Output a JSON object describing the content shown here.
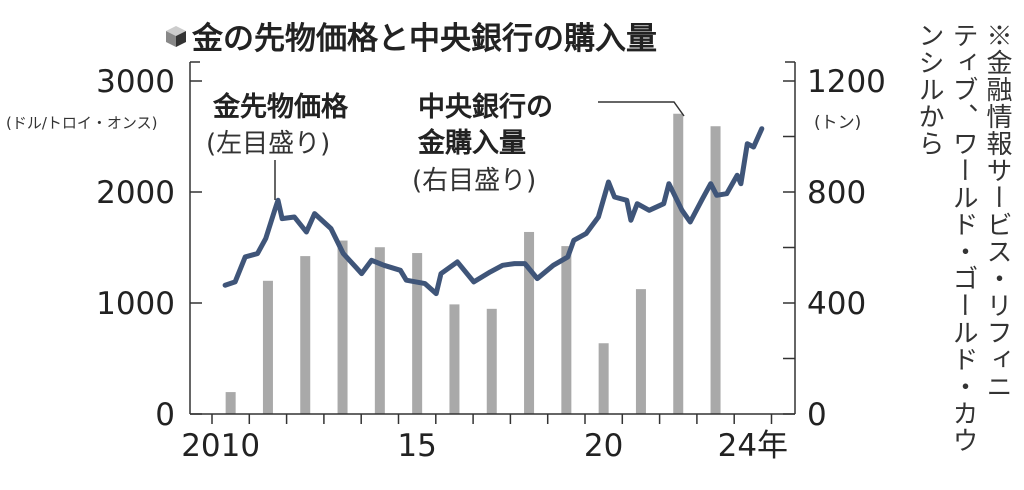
{
  "title": "金の先物価格と中央銀行の購入量",
  "note": [
    "※金融情報サービス・リフィニ",
    "ティブ、ワールド・ゴールド・カウ",
    "ンシルから"
  ],
  "colors": {
    "line": "#3f5579",
    "bar": "#a9a9a9",
    "axis": "#333333"
  },
  "chart_data": {
    "type": "bar+line",
    "title": "金の先物価格と中央銀行の購入量",
    "x_ticks": [
      {
        "year": 2010,
        "label": "2010"
      },
      {
        "year": 2015,
        "label": "15"
      },
      {
        "year": 2020,
        "label": "20"
      },
      {
        "year": 2024,
        "label": "24年"
      }
    ],
    "xlim": [
      2010,
      2025
    ],
    "left_axis": {
      "unit": "(ドル/トロイ・オンス)",
      "range": [
        0,
        3000
      ],
      "ticks": [
        "0",
        "1000",
        "2000",
        "3000"
      ]
    },
    "right_axis": {
      "unit": "(トン)",
      "range": [
        0,
        1200
      ],
      "ticks": [
        "0",
        "400",
        "800",
        "1200"
      ]
    },
    "series": [
      {
        "name": "金先物価格",
        "sublabel": "(左目盛り)",
        "type": "line",
        "axis": "left",
        "points": [
          [
            2010.35,
            1160
          ],
          [
            2010.62,
            1190
          ],
          [
            2010.89,
            1415
          ],
          [
            2011.22,
            1445
          ],
          [
            2011.44,
            1580
          ],
          [
            2011.68,
            1835
          ],
          [
            2011.77,
            1925
          ],
          [
            2011.88,
            1760
          ],
          [
            2012.21,
            1775
          ],
          [
            2012.53,
            1640
          ],
          [
            2012.75,
            1805
          ],
          [
            2013.19,
            1670
          ],
          [
            2013.52,
            1445
          ],
          [
            2013.85,
            1325
          ],
          [
            2014.01,
            1265
          ],
          [
            2014.28,
            1385
          ],
          [
            2014.61,
            1340
          ],
          [
            2015.05,
            1295
          ],
          [
            2015.21,
            1205
          ],
          [
            2015.71,
            1175
          ],
          [
            2016.01,
            1085
          ],
          [
            2016.14,
            1265
          ],
          [
            2016.58,
            1370
          ],
          [
            2017.02,
            1190
          ],
          [
            2017.46,
            1280
          ],
          [
            2017.79,
            1340
          ],
          [
            2018.11,
            1355
          ],
          [
            2018.39,
            1355
          ],
          [
            2018.72,
            1220
          ],
          [
            2019.15,
            1340
          ],
          [
            2019.54,
            1415
          ],
          [
            2019.7,
            1565
          ],
          [
            2020.03,
            1625
          ],
          [
            2020.36,
            1775
          ],
          [
            2020.63,
            2090
          ],
          [
            2020.79,
            1955
          ],
          [
            2021.12,
            1925
          ],
          [
            2021.23,
            1745
          ],
          [
            2021.4,
            1895
          ],
          [
            2021.72,
            1835
          ],
          [
            2022.11,
            1895
          ],
          [
            2022.25,
            2075
          ],
          [
            2022.6,
            1835
          ],
          [
            2022.82,
            1730
          ],
          [
            2023.15,
            1940
          ],
          [
            2023.37,
            2075
          ],
          [
            2023.53,
            1970
          ],
          [
            2023.8,
            1985
          ],
          [
            2024.08,
            2150
          ],
          [
            2024.18,
            2075
          ],
          [
            2024.35,
            2435
          ],
          [
            2024.52,
            2405
          ],
          [
            2024.74,
            2570
          ]
        ]
      },
      {
        "name": "中央銀行の金購入量",
        "name_lines": [
          "中央銀行の",
          "金購入量"
        ],
        "sublabel": "(右目盛り)",
        "type": "bar",
        "axis": "right",
        "categories": [
          2010,
          2011,
          2012,
          2013,
          2014,
          2015,
          2016,
          2017,
          2018,
          2019,
          2020,
          2021,
          2022,
          2023
        ],
        "values": [
          79,
          480,
          569,
          625,
          601,
          580,
          395,
          379,
          656,
          605,
          255,
          450,
          1082,
          1037
        ]
      }
    ],
    "grid": false
  }
}
